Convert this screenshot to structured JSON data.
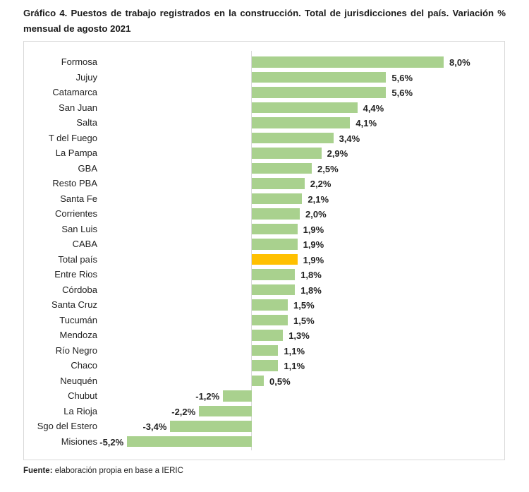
{
  "title": "Gráfico 4. Puestos de trabajo registrados en la construcción. Total de jurisdicciones del país. Variación % mensual de agosto 2021",
  "source": {
    "label": "Fuente:",
    "text": " elaboración propia en base a IERIC"
  },
  "colors": {
    "bar": "#a9d18e",
    "highlight": "#ffc000",
    "border": "#d9d9d9"
  },
  "chart_data": {
    "type": "bar",
    "orientation": "horizontal",
    "title": "Gráfico 4. Puestos de trabajo registrados en la construcción. Total de jurisdicciones del país. Variación % mensual de agosto 2021",
    "xlabel": "",
    "ylabel": "",
    "unit": "%",
    "grid": false,
    "legend": null,
    "categories": [
      "Formosa",
      "Jujuy",
      "Catamarca",
      "San Juan",
      "Salta",
      "T del Fuego",
      "La Pampa",
      "GBA",
      "Resto PBA",
      "Santa Fe",
      "Corrientes",
      "San Luis",
      "CABA",
      "Total país",
      "Entre Rios",
      "Córdoba",
      "Santa Cruz",
      "Tucumán",
      "Mendoza",
      "Río Negro",
      "Chaco",
      "Neuquén",
      "Chubut",
      "La Rioja",
      "Sgo del Estero",
      "Misiones"
    ],
    "values": [
      8.0,
      5.6,
      5.6,
      4.4,
      4.1,
      3.4,
      2.9,
      2.5,
      2.2,
      2.1,
      2.0,
      1.9,
      1.9,
      1.9,
      1.8,
      1.8,
      1.5,
      1.5,
      1.3,
      1.1,
      1.1,
      0.5,
      -1.2,
      -2.2,
      -3.4,
      -5.2
    ],
    "value_labels": [
      "8,0%",
      "5,6%",
      "5,6%",
      "4,4%",
      "4,1%",
      "3,4%",
      "2,9%",
      "2,5%",
      "2,2%",
      "2,1%",
      "2,0%",
      "1,9%",
      "1,9%",
      "1,9%",
      "1,8%",
      "1,8%",
      "1,5%",
      "1,5%",
      "1,3%",
      "1,1%",
      "1,1%",
      "0,5%",
      "-1,2%",
      "-2,2%",
      "-3,4%",
      "-5,2%"
    ],
    "highlight": "Total país",
    "xlim": [
      -5.5,
      8.5
    ]
  }
}
